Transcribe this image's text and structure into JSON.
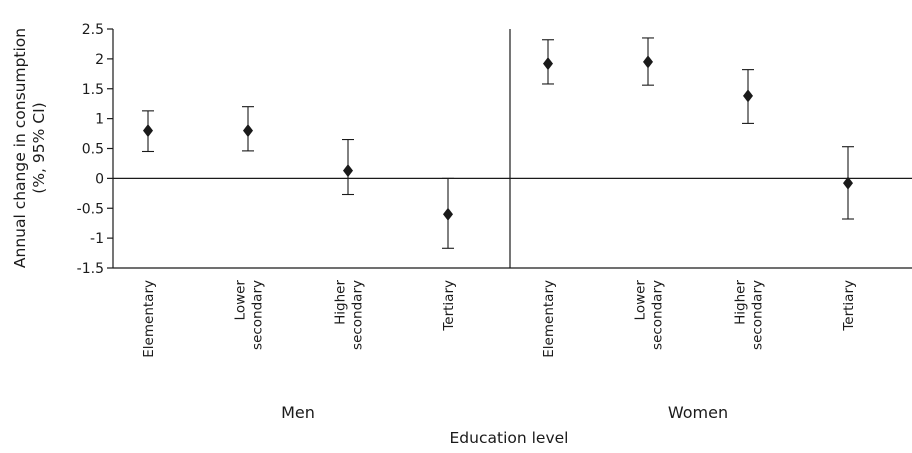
{
  "chart_data": {
    "type": "scatter",
    "subtype": "point-estimate with 95% CI error bars",
    "ylabel_lines": [
      "Annual change in consumption",
      "(%, 95% CI)"
    ],
    "xlabel": "Education level",
    "ylim": [
      -1.5,
      2.5
    ],
    "yticks": [
      2.5,
      2,
      1.5,
      1,
      0.5,
      0,
      -0.5,
      -1,
      -1.5
    ],
    "ytick_labels": [
      "2.5",
      "2",
      "1.5",
      "1",
      "0.5",
      "0",
      "-0.5",
      "-1",
      "-1.5"
    ],
    "reference_line_y": 0,
    "grid": false,
    "groups": [
      {
        "name": "Men",
        "points": [
          {
            "category": [
              "Elementary"
            ],
            "value": 0.8,
            "ci": [
              0.45,
              1.13
            ]
          },
          {
            "category": [
              "Lower",
              "secondary"
            ],
            "value": 0.8,
            "ci": [
              0.46,
              1.2
            ]
          },
          {
            "category": [
              "Higher",
              "secondary"
            ],
            "value": 0.13,
            "ci": [
              -0.27,
              0.65
            ]
          },
          {
            "category": [
              "Tertiary"
            ],
            "value": -0.6,
            "ci": [
              -1.17,
              0.0
            ]
          }
        ]
      },
      {
        "name": "Women",
        "points": [
          {
            "category": [
              "Elementary"
            ],
            "value": 1.92,
            "ci": [
              1.58,
              2.32
            ]
          },
          {
            "category": [
              "Lower",
              "secondary"
            ],
            "value": 1.95,
            "ci": [
              1.56,
              2.35
            ]
          },
          {
            "category": [
              "Higher",
              "secondary"
            ],
            "value": 1.38,
            "ci": [
              0.92,
              1.82
            ]
          },
          {
            "category": [
              "Tertiary"
            ],
            "value": -0.08,
            "ci": [
              -0.68,
              0.53
            ]
          }
        ]
      }
    ]
  }
}
